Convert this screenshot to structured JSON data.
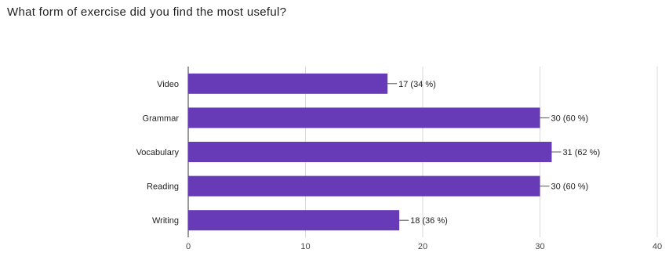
{
  "question": "What form of exercise did you find the most useful?",
  "colors": {
    "bar": "#673ab7",
    "grid": "#d9d9d9",
    "axis": "#333333"
  },
  "chart_data": {
    "type": "bar",
    "orientation": "horizontal",
    "categories": [
      "Video",
      "Grammar",
      "Vocabulary",
      "Reading",
      "Writing"
    ],
    "values": [
      17,
      30,
      31,
      30,
      18
    ],
    "data_labels": [
      "17 (34 %)",
      "30 (60 %)",
      "31 (62 %)",
      "30 (60 %)",
      "18 (36 %)"
    ],
    "xticks": [
      "0",
      "10",
      "20",
      "30",
      "40"
    ],
    "xlim": [
      0,
      40
    ],
    "grid": true,
    "legend": "none",
    "title": "What form of exercise did you find the most useful?",
    "xlabel": "",
    "ylabel": ""
  }
}
